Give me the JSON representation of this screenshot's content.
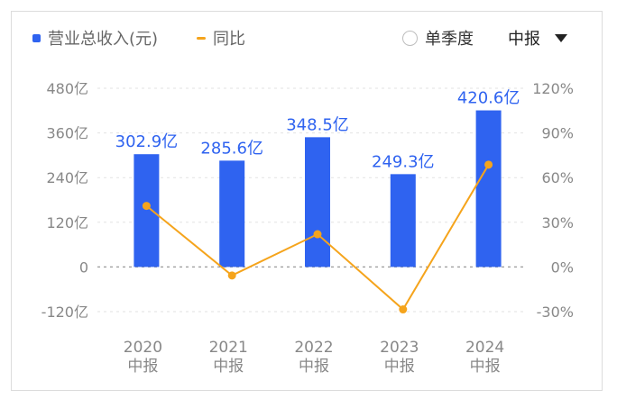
{
  "legend": {
    "revenue_label": "营业总收入(元)",
    "yoy_label": "同比",
    "revenue_color": "#2f63f0",
    "yoy_color": "#f5a41c"
  },
  "controls": {
    "quarter_label": "单季度",
    "period_label": "中报",
    "icons": {
      "radio": "radio-empty-icon",
      "dropdown": "triangle-down-icon"
    }
  },
  "chart_data": {
    "type": "bar",
    "categories": [
      [
        "2020",
        "中报"
      ],
      [
        "2021",
        "中报"
      ],
      [
        "2022",
        "中报"
      ],
      [
        "2023",
        "中报"
      ],
      [
        "2024",
        "中报"
      ]
    ],
    "series": [
      {
        "name": "营业总收入(元)",
        "type": "bar",
        "axis": "left",
        "values": [
          302.9,
          285.6,
          348.5,
          249.3,
          420.6
        ],
        "data_labels": [
          "302.9亿",
          "285.6亿",
          "348.5亿",
          "249.3亿",
          "420.6亿"
        ]
      },
      {
        "name": "同比",
        "type": "line",
        "axis": "right",
        "values": [
          41,
          -5.7,
          22.0,
          -28.5,
          68.7
        ]
      }
    ],
    "y_left": {
      "min": -120,
      "max": 480,
      "ticks": [
        480,
        360,
        240,
        120,
        0,
        -120
      ],
      "tick_labels": [
        "480亿",
        "360亿",
        "240亿",
        "120亿",
        "0",
        "-120亿"
      ]
    },
    "y_right": {
      "min": -30,
      "max": 120,
      "ticks": [
        120,
        90,
        60,
        30,
        0,
        -30
      ],
      "tick_labels": [
        "120%",
        "90%",
        "60%",
        "30%",
        "0%",
        "-30%"
      ]
    },
    "grid": true,
    "legend_position": "top-left"
  }
}
